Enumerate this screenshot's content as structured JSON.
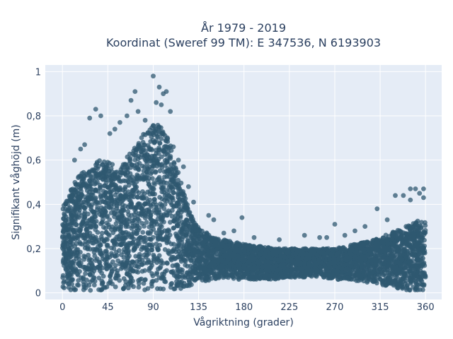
{
  "chart_data": {
    "type": "scatter",
    "title_line1": "År 1979 - 2019",
    "title_line2": "Koordinat (Sweref 99 TM): E 347536, N 6193903",
    "xlabel": "Vågriktning (grader)",
    "ylabel": "Signifikant våghöjd (m)",
    "xlim": [
      -17,
      376
    ],
    "ylim": [
      -0.03,
      1.03
    ],
    "xticks": [
      0,
      45,
      90,
      135,
      180,
      225,
      270,
      315,
      360
    ],
    "yticks": [
      0,
      0.2,
      0.4,
      0.6,
      0.8,
      1
    ],
    "ytick_labels": [
      "0",
      "0,2",
      "0,4",
      "0,6",
      "0,8",
      "1"
    ],
    "grid": true,
    "background": "#e5ecf6",
    "marker_color": "#2f5870",
    "envelope": {
      "x": [
        0,
        5,
        10,
        15,
        20,
        25,
        30,
        35,
        40,
        45,
        50,
        55,
        60,
        65,
        70,
        75,
        80,
        85,
        90,
        95,
        100,
        105,
        110,
        115,
        120,
        125,
        130,
        135,
        140,
        150,
        160,
        170,
        180,
        190,
        200,
        210,
        220,
        230,
        240,
        250,
        260,
        270,
        280,
        290,
        300,
        310,
        320,
        330,
        340,
        350,
        355,
        360
      ],
      "y_max": [
        0.38,
        0.45,
        0.48,
        0.52,
        0.55,
        0.55,
        0.58,
        0.6,
        0.62,
        0.6,
        0.58,
        0.55,
        0.58,
        0.62,
        0.65,
        0.68,
        0.72,
        0.75,
        0.76,
        0.76,
        0.74,
        0.7,
        0.62,
        0.56,
        0.46,
        0.38,
        0.33,
        0.3,
        0.28,
        0.25,
        0.24,
        0.23,
        0.22,
        0.21,
        0.21,
        0.2,
        0.2,
        0.2,
        0.2,
        0.2,
        0.2,
        0.2,
        0.21,
        0.22,
        0.23,
        0.24,
        0.26,
        0.28,
        0.3,
        0.32,
        0.33,
        0.32
      ],
      "y_min": [
        0.01,
        0.01,
        0.01,
        0.01,
        0.01,
        0.01,
        0.01,
        0.01,
        0.01,
        0.01,
        0.01,
        0.01,
        0.01,
        0.01,
        0.01,
        0.01,
        0.01,
        0.01,
        0.01,
        0.01,
        0.01,
        0.01,
        0.01,
        0.01,
        0.02,
        0.03,
        0.04,
        0.05,
        0.05,
        0.06,
        0.06,
        0.06,
        0.06,
        0.06,
        0.06,
        0.06,
        0.07,
        0.07,
        0.07,
        0.07,
        0.07,
        0.06,
        0.06,
        0.05,
        0.05,
        0.04,
        0.03,
        0.02,
        0.01,
        0.01,
        0.01,
        0.01
      ]
    },
    "outliers": {
      "x": [
        90,
        96,
        100,
        103,
        93,
        98,
        107,
        72,
        68,
        33,
        38,
        27,
        52,
        64,
        75,
        82,
        57,
        47,
        22,
        18,
        12,
        110,
        115,
        120,
        125,
        130,
        145,
        150,
        160,
        170,
        178,
        190,
        215,
        240,
        255,
        262,
        270,
        280,
        290,
        300,
        312,
        322,
        330,
        338,
        345,
        350,
        354,
        358,
        358,
        345
      ],
      "y": [
        0.98,
        0.93,
        0.9,
        0.91,
        0.86,
        0.85,
        0.82,
        0.91,
        0.87,
        0.83,
        0.8,
        0.79,
        0.74,
        0.8,
        0.82,
        0.78,
        0.77,
        0.72,
        0.67,
        0.65,
        0.6,
        0.66,
        0.6,
        0.57,
        0.48,
        0.41,
        0.35,
        0.33,
        0.27,
        0.28,
        0.34,
        0.25,
        0.24,
        0.26,
        0.25,
        0.25,
        0.31,
        0.26,
        0.28,
        0.3,
        0.38,
        0.33,
        0.44,
        0.44,
        0.47,
        0.47,
        0.45,
        0.47,
        0.43,
        0.42
      ]
    }
  }
}
